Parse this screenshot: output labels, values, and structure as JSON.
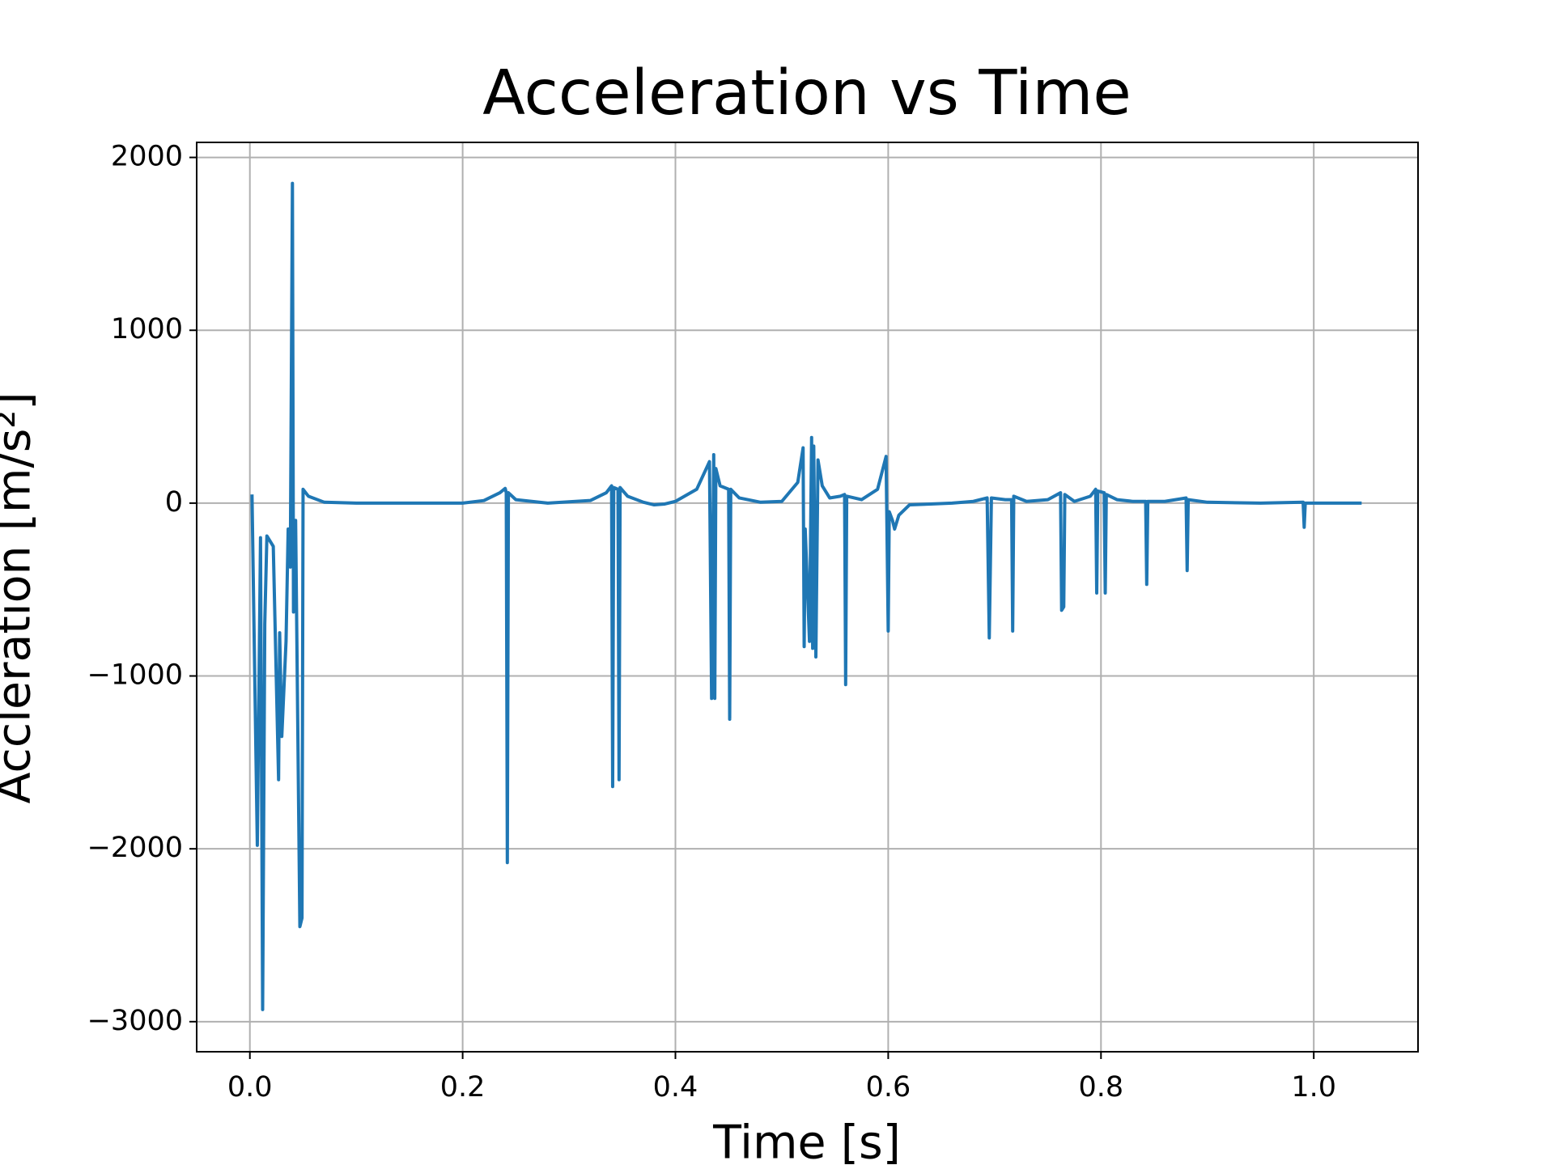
{
  "chart_data": {
    "type": "line",
    "title": "Acceleration vs Time",
    "x_label": "Time [s]",
    "y_label": "Accleration [m/s²]",
    "xlim": [
      -0.05,
      1.098
    ],
    "ylim": [
      -3174,
      2087
    ],
    "xticks": [
      {
        "value": 0,
        "label": "0.0"
      },
      0.2,
      0.4,
      0.6,
      0.8,
      {
        "value": 1,
        "label": "1.0"
      }
    ],
    "yticks": [
      {
        "value": -3000,
        "label": "−3000"
      },
      {
        "value": -2000,
        "label": "−2000"
      },
      {
        "value": -1000,
        "label": "−1000"
      },
      0,
      1000,
      2000
    ],
    "grid": true,
    "series": [
      {
        "color": "#1f77b4",
        "x": [
          0.002,
          0.007,
          0.01,
          0.012,
          0.014,
          0.016,
          0.022,
          0.027,
          0.028,
          0.03,
          0.034,
          0.036,
          0.038,
          0.04,
          0.041,
          0.043,
          0.047,
          0.049,
          0.05,
          0.055,
          0.07,
          0.1,
          0.15,
          0.2,
          0.22,
          0.235,
          0.24,
          0.241,
          0.242,
          0.243,
          0.25,
          0.28,
          0.32,
          0.335,
          0.34,
          0.341,
          0.342,
          0.346,
          0.347,
          0.348,
          0.355,
          0.37,
          0.38,
          0.39,
          0.4,
          0.42,
          0.432,
          0.434,
          0.436,
          0.437,
          0.438,
          0.442,
          0.45,
          0.451,
          0.452,
          0.46,
          0.48,
          0.5,
          0.515,
          0.52,
          0.521,
          0.522,
          0.526,
          0.528,
          0.529,
          0.53,
          0.532,
          0.534,
          0.538,
          0.545,
          0.555,
          0.559,
          0.56,
          0.561,
          0.575,
          0.59,
          0.598,
          0.6,
          0.601,
          0.604,
          0.606,
          0.61,
          0.62,
          0.64,
          0.66,
          0.68,
          0.693,
          0.695,
          0.697,
          0.71,
          0.716,
          0.717,
          0.718,
          0.73,
          0.75,
          0.762,
          0.763,
          0.765,
          0.766,
          0.775,
          0.79,
          0.795,
          0.796,
          0.797,
          0.803,
          0.804,
          0.805,
          0.815,
          0.83,
          0.842,
          0.843,
          0.844,
          0.86,
          0.88,
          0.881,
          0.882,
          0.9,
          0.95,
          0.99,
          0.991,
          0.992,
          1.0,
          1.045
        ],
        "values": [
          50,
          -1980,
          -200,
          -2930,
          -700,
          -190,
          -250,
          -1600,
          -750,
          -1350,
          -800,
          -150,
          -370,
          1850,
          -630,
          -100,
          -2450,
          -2400,
          80,
          40,
          5,
          0,
          0,
          0,
          15,
          60,
          85,
          60,
          -2080,
          60,
          20,
          0,
          15,
          60,
          100,
          -1640,
          90,
          80,
          -1600,
          90,
          40,
          5,
          -10,
          -5,
          10,
          80,
          240,
          -1130,
          280,
          -1130,
          200,
          100,
          80,
          -1250,
          80,
          30,
          5,
          10,
          120,
          320,
          -830,
          -150,
          -800,
          380,
          -840,
          330,
          -890,
          250,
          100,
          30,
          40,
          50,
          -1050,
          40,
          20,
          80,
          270,
          -740,
          -50,
          -100,
          -150,
          -70,
          -10,
          -5,
          0,
          10,
          30,
          -780,
          30,
          20,
          20,
          -740,
          40,
          10,
          20,
          60,
          -620,
          -600,
          50,
          10,
          40,
          80,
          -520,
          70,
          60,
          -520,
          50,
          20,
          10,
          10,
          -470,
          10,
          10,
          30,
          -390,
          20,
          5,
          0,
          5,
          -140,
          0,
          0,
          0
        ]
      }
    ]
  }
}
